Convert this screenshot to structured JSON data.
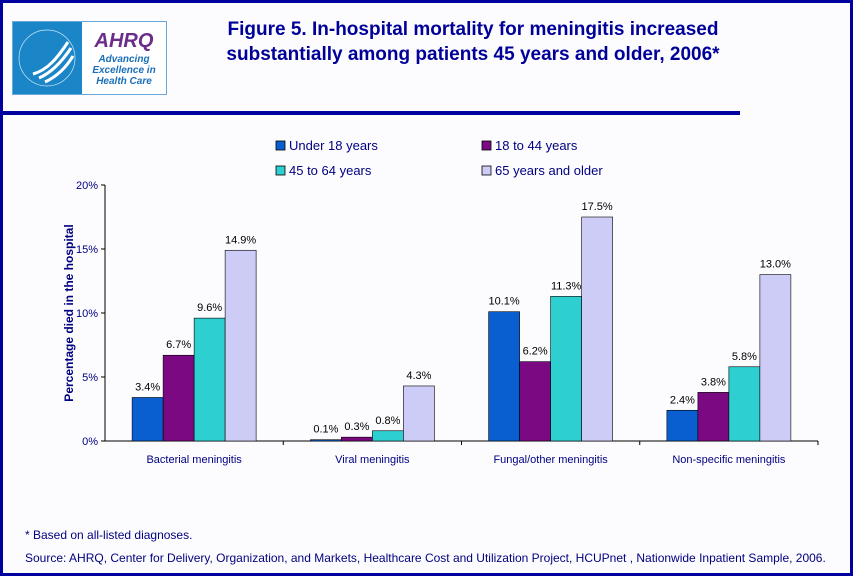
{
  "logo": {
    "text": "AHRQ",
    "tagline": "Advancing Excellence in Health Care",
    "seal": "Department of Health & Human Services USA"
  },
  "title": "Figure 5. In-hospital mortality for meningitis increased substantially among patients 45 years and older, 2006*",
  "footnote": "* Based on all-listed diagnoses.",
  "source": "Source: AHRQ, Center for Delivery, Organization, and Markets, Healthcare Cost and Utilization Project, HCUPnet , Nationwide Inpatient Sample, 2006.",
  "chart_data": {
    "type": "bar",
    "ylabel": "Percentage died in the hospital",
    "xlabel": "",
    "ylim": [
      0,
      20
    ],
    "yticks": [
      "0%",
      "5%",
      "10%",
      "15%",
      "20%"
    ],
    "grid": false,
    "legend": "top",
    "categories": [
      "Bacterial meningitis",
      "Viral meningitis",
      "Fungal/other meningitis",
      "Non-specific meningitis"
    ],
    "series": [
      {
        "name": "Under 18 years",
        "color": "#0a5fd0",
        "values": [
          3.4,
          0.1,
          10.1,
          2.4
        ]
      },
      {
        "name": "18 to 44 years",
        "color": "#7b0a82",
        "values": [
          6.7,
          0.3,
          6.2,
          3.8
        ]
      },
      {
        "name": "45 to 64 years",
        "color": "#2ecfd0",
        "values": [
          9.6,
          0.8,
          11.3,
          5.8
        ]
      },
      {
        "name": "65 years and older",
        "color": "#ccccf6",
        "values": [
          14.9,
          4.3,
          17.5,
          13.0
        ]
      }
    ]
  }
}
